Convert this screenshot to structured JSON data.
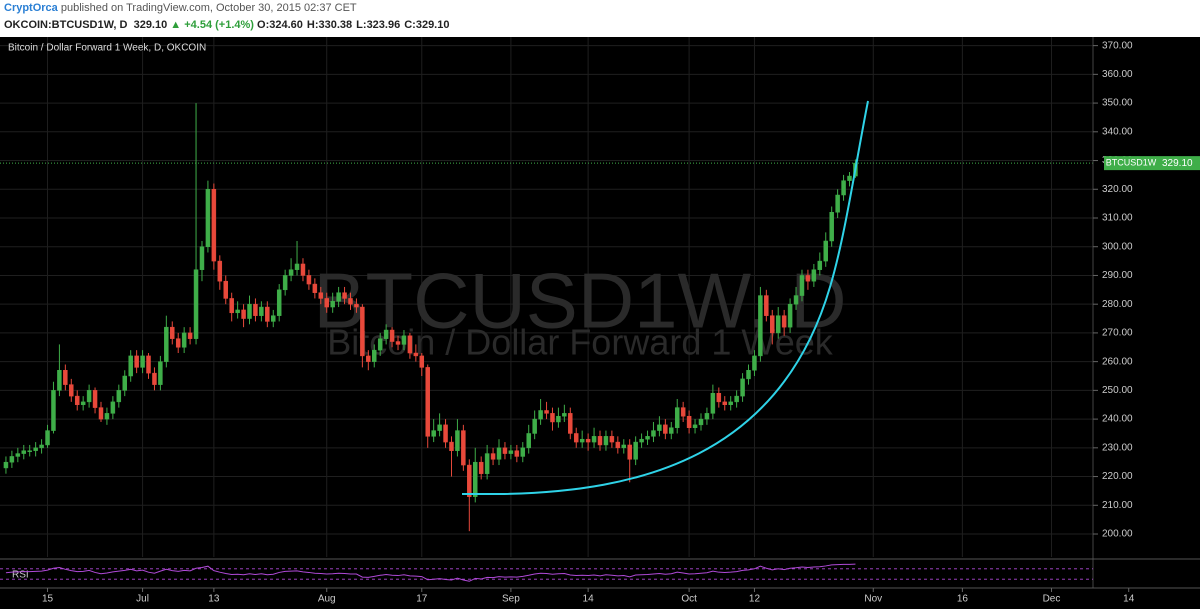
{
  "header": {
    "author": "CryptOrca",
    "published": "published on TradingView.com, October 30, 2015 02:37 CET",
    "symbol": "OKCOIN:BTCUSD1W, D",
    "price": "329.10",
    "change": "▲ +4.54 (+1.4%)",
    "ohlc": [
      {
        "key": "O:",
        "value": "324.60"
      },
      {
        "key": "H:",
        "value": "330.38"
      },
      {
        "key": "L:",
        "value": "323.96"
      },
      {
        "key": "C:",
        "value": "329.10"
      }
    ]
  },
  "chart_data": {
    "type": "candlestick",
    "title": "Bitcoin / Dollar Forward 1 Week, D, OKCOIN",
    "watermark": [
      "BTCUSD1W, D",
      "Bitcoin / Dollar Forward 1 Week"
    ],
    "up_color": "#3fae49",
    "down_color": "#e8493b",
    "grid": true,
    "xlim": [
      -1,
      201
    ],
    "ylim": [
      192,
      373
    ],
    "xticks": [
      {
        "value": 7,
        "label": "15"
      },
      {
        "value": 23,
        "label": "Jul"
      },
      {
        "value": 35,
        "label": "13"
      },
      {
        "value": 54,
        "label": "Aug"
      },
      {
        "value": 70,
        "label": "17"
      },
      {
        "value": 85,
        "label": "Sep"
      },
      {
        "value": 98,
        "label": "14"
      },
      {
        "value": 115,
        "label": "Oct"
      },
      {
        "value": 126,
        "label": "12"
      },
      {
        "value": 146,
        "label": "Nov"
      },
      {
        "value": 161,
        "label": "16"
      },
      {
        "value": 176,
        "label": "Dec"
      },
      {
        "value": 189,
        "label": "14"
      }
    ],
    "yticks": [
      {
        "value": 200,
        "label": "200.00"
      },
      {
        "value": 210,
        "label": "210.00"
      },
      {
        "value": 220,
        "label": "220.00"
      },
      {
        "value": 230,
        "label": "230.00"
      },
      {
        "value": 240,
        "label": "240.00"
      },
      {
        "value": 250,
        "label": "250.00"
      },
      {
        "value": 260,
        "label": "260.00"
      },
      {
        "value": 270,
        "label": "270.00"
      },
      {
        "value": 280,
        "label": "280.00"
      },
      {
        "value": 290,
        "label": "290.00"
      },
      {
        "value": 300,
        "label": "300.00"
      },
      {
        "value": 310,
        "label": "310.00"
      },
      {
        "value": 320,
        "label": "320.00"
      },
      {
        "value": 330,
        "label": "330.00"
      },
      {
        "value": 340,
        "label": "340.00"
      },
      {
        "value": 350,
        "label": "350.00"
      },
      {
        "value": 360,
        "label": "360.00"
      },
      {
        "value": 370,
        "label": "370.00"
      }
    ],
    "last_price": {
      "tag": "BTCUSD1W",
      "value": 329.1,
      "label": "329.10"
    },
    "values": [
      [
        223,
        227,
        221,
        225
      ],
      [
        225,
        229,
        223,
        227
      ],
      [
        227,
        230,
        225,
        228
      ],
      [
        228,
        231,
        226,
        229
      ],
      [
        229,
        231,
        227,
        229
      ],
      [
        229,
        232,
        227,
        230
      ],
      [
        230,
        233,
        228,
        231
      ],
      [
        231,
        238,
        230,
        236
      ],
      [
        236,
        253,
        235,
        250
      ],
      [
        250,
        266,
        248,
        257
      ],
      [
        257,
        259,
        250,
        252
      ],
      [
        252,
        254,
        246,
        248
      ],
      [
        248,
        250,
        243,
        245
      ],
      [
        245,
        248,
        243,
        246
      ],
      [
        246,
        252,
        244,
        250
      ],
      [
        250,
        251,
        242,
        244
      ],
      [
        244,
        246,
        239,
        240
      ],
      [
        240,
        244,
        238,
        242
      ],
      [
        242,
        248,
        240,
        246
      ],
      [
        246,
        252,
        244,
        250
      ],
      [
        250,
        257,
        248,
        255
      ],
      [
        255,
        264,
        253,
        262
      ],
      [
        262,
        264,
        256,
        258
      ],
      [
        258,
        264,
        256,
        262
      ],
      [
        262,
        263,
        254,
        256
      ],
      [
        256,
        258,
        250,
        252
      ],
      [
        252,
        262,
        250,
        260
      ],
      [
        260,
        276,
        258,
        272
      ],
      [
        272,
        274,
        266,
        268
      ],
      [
        268,
        270,
        263,
        265
      ],
      [
        265,
        272,
        263,
        270
      ],
      [
        270,
        272,
        266,
        268
      ],
      [
        268,
        350,
        266,
        292
      ],
      [
        292,
        302,
        288,
        300
      ],
      [
        300,
        323,
        298,
        320
      ],
      [
        320,
        322,
        292,
        295
      ],
      [
        295,
        297,
        285,
        288
      ],
      [
        288,
        290,
        280,
        282
      ],
      [
        282,
        284,
        274,
        277
      ],
      [
        277,
        281,
        275,
        278
      ],
      [
        278,
        280,
        272,
        275
      ],
      [
        275,
        283,
        273,
        280
      ],
      [
        280,
        282,
        274,
        276
      ],
      [
        276,
        281,
        274,
        279
      ],
      [
        279,
        281,
        272,
        274
      ],
      [
        274,
        278,
        272,
        276
      ],
      [
        276,
        287,
        274,
        285
      ],
      [
        285,
        292,
        283,
        290
      ],
      [
        290,
        296,
        288,
        292
      ],
      [
        292,
        302,
        290,
        294
      ],
      [
        294,
        296,
        288,
        290
      ],
      [
        290,
        292,
        285,
        287
      ],
      [
        287,
        289,
        282,
        284
      ],
      [
        284,
        286,
        280,
        282
      ],
      [
        282,
        284,
        277,
        279
      ],
      [
        279,
        284,
        277,
        281
      ],
      [
        281,
        286,
        279,
        284
      ],
      [
        284,
        286,
        280,
        282
      ],
      [
        282,
        284,
        278,
        280
      ],
      [
        280,
        282,
        277,
        279
      ],
      [
        279,
        280,
        258,
        262
      ],
      [
        262,
        264,
        257,
        260
      ],
      [
        260,
        266,
        258,
        264
      ],
      [
        264,
        270,
        262,
        268
      ],
      [
        268,
        273,
        266,
        271
      ],
      [
        271,
        272,
        265,
        267
      ],
      [
        267,
        269,
        264,
        266
      ],
      [
        266,
        271,
        264,
        269
      ],
      [
        269,
        270,
        261,
        263
      ],
      [
        263,
        266,
        260,
        262
      ],
      [
        262,
        263,
        255,
        258
      ],
      [
        258,
        259,
        230,
        234
      ],
      [
        234,
        240,
        232,
        236
      ],
      [
        236,
        242,
        234,
        238
      ],
      [
        238,
        240,
        230,
        232
      ],
      [
        232,
        234,
        220,
        229
      ],
      [
        229,
        240,
        227,
        236
      ],
      [
        236,
        238,
        222,
        224
      ],
      [
        224,
        226,
        201,
        213
      ],
      [
        213,
        230,
        211,
        225
      ],
      [
        225,
        227,
        219,
        221
      ],
      [
        221,
        231,
        219,
        228
      ],
      [
        228,
        230,
        224,
        226
      ],
      [
        226,
        233,
        224,
        230
      ],
      [
        230,
        232,
        226,
        228
      ],
      [
        228,
        231,
        226,
        229
      ],
      [
        229,
        231,
        225,
        227
      ],
      [
        227,
        232,
        225,
        230
      ],
      [
        230,
        238,
        228,
        235
      ],
      [
        235,
        243,
        233,
        240
      ],
      [
        240,
        247,
        238,
        243
      ],
      [
        243,
        246,
        240,
        242
      ],
      [
        242,
        244,
        236,
        239
      ],
      [
        239,
        244,
        237,
        241
      ],
      [
        241,
        245,
        239,
        242
      ],
      [
        242,
        244,
        233,
        235
      ],
      [
        235,
        237,
        230,
        232
      ],
      [
        232,
        236,
        230,
        233
      ],
      [
        233,
        235,
        229,
        232
      ],
      [
        232,
        237,
        230,
        234
      ],
      [
        234,
        236,
        229,
        231
      ],
      [
        231,
        236,
        229,
        234
      ],
      [
        234,
        236,
        230,
        232
      ],
      [
        232,
        234,
        228,
        230
      ],
      [
        230,
        233,
        228,
        231
      ],
      [
        231,
        233,
        218,
        226
      ],
      [
        226,
        234,
        224,
        232
      ],
      [
        232,
        235,
        230,
        233
      ],
      [
        233,
        236,
        231,
        234
      ],
      [
        234,
        239,
        232,
        236
      ],
      [
        236,
        241,
        234,
        238
      ],
      [
        238,
        240,
        233,
        235
      ],
      [
        235,
        239,
        233,
        237
      ],
      [
        237,
        247,
        235,
        244
      ],
      [
        244,
        246,
        239,
        241
      ],
      [
        241,
        243,
        235,
        237
      ],
      [
        237,
        240,
        235,
        238
      ],
      [
        238,
        242,
        236,
        240
      ],
      [
        240,
        244,
        238,
        242
      ],
      [
        242,
        252,
        240,
        249
      ],
      [
        249,
        251,
        244,
        246
      ],
      [
        246,
        248,
        243,
        245
      ],
      [
        245,
        248,
        243,
        246
      ],
      [
        246,
        250,
        244,
        248
      ],
      [
        248,
        256,
        246,
        254
      ],
      [
        254,
        259,
        252,
        257
      ],
      [
        257,
        264,
        255,
        262
      ],
      [
        262,
        286,
        260,
        283
      ],
      [
        283,
        285,
        274,
        276
      ],
      [
        276,
        278,
        266,
        270
      ],
      [
        270,
        279,
        268,
        276
      ],
      [
        276,
        278,
        269,
        272
      ],
      [
        272,
        282,
        270,
        280
      ],
      [
        280,
        286,
        278,
        283
      ],
      [
        283,
        292,
        281,
        290
      ],
      [
        290,
        292,
        285,
        288
      ],
      [
        288,
        294,
        286,
        292
      ],
      [
        292,
        298,
        290,
        295
      ],
      [
        295,
        305,
        293,
        302
      ],
      [
        302,
        314,
        300,
        312
      ],
      [
        312,
        320,
        310,
        318
      ],
      [
        318,
        325,
        316,
        323
      ],
      [
        323,
        326,
        321,
        324.6
      ],
      [
        324.6,
        330.38,
        323.96,
        329.1
      ]
    ],
    "rsi": {
      "name": "RSI",
      "color": "#b04ad8",
      "ylim": [
        0,
        100
      ],
      "bounds": [
        30,
        70
      ],
      "values": [
        55,
        57,
        58,
        59,
        59,
        60,
        61,
        65,
        72,
        75,
        68,
        63,
        59,
        60,
        64,
        56,
        51,
        54,
        58,
        61,
        64,
        68,
        62,
        65,
        57,
        53,
        61,
        68,
        63,
        60,
        64,
        62,
        72,
        75,
        80,
        63,
        57,
        52,
        48,
        49,
        47,
        51,
        48,
        51,
        47,
        49,
        56,
        60,
        61,
        62,
        58,
        56,
        53,
        52,
        50,
        51,
        53,
        52,
        50,
        50,
        38,
        37,
        41,
        45,
        48,
        45,
        44,
        47,
        43,
        42,
        40,
        28,
        30,
        32,
        29,
        27,
        34,
        27,
        22,
        33,
        31,
        37,
        36,
        40,
        38,
        39,
        38,
        41,
        45,
        50,
        53,
        52,
        49,
        51,
        52,
        46,
        44,
        45,
        44,
        46,
        43,
        47,
        45,
        43,
        44,
        39,
        46,
        47,
        48,
        50,
        52,
        49,
        51,
        57,
        54,
        50,
        51,
        53,
        55,
        61,
        57,
        56,
        57,
        59,
        64,
        66,
        70,
        80,
        72,
        66,
        70,
        67,
        72,
        74,
        77,
        75,
        77,
        78,
        81,
        85,
        86,
        87,
        87,
        88
      ]
    }
  }
}
